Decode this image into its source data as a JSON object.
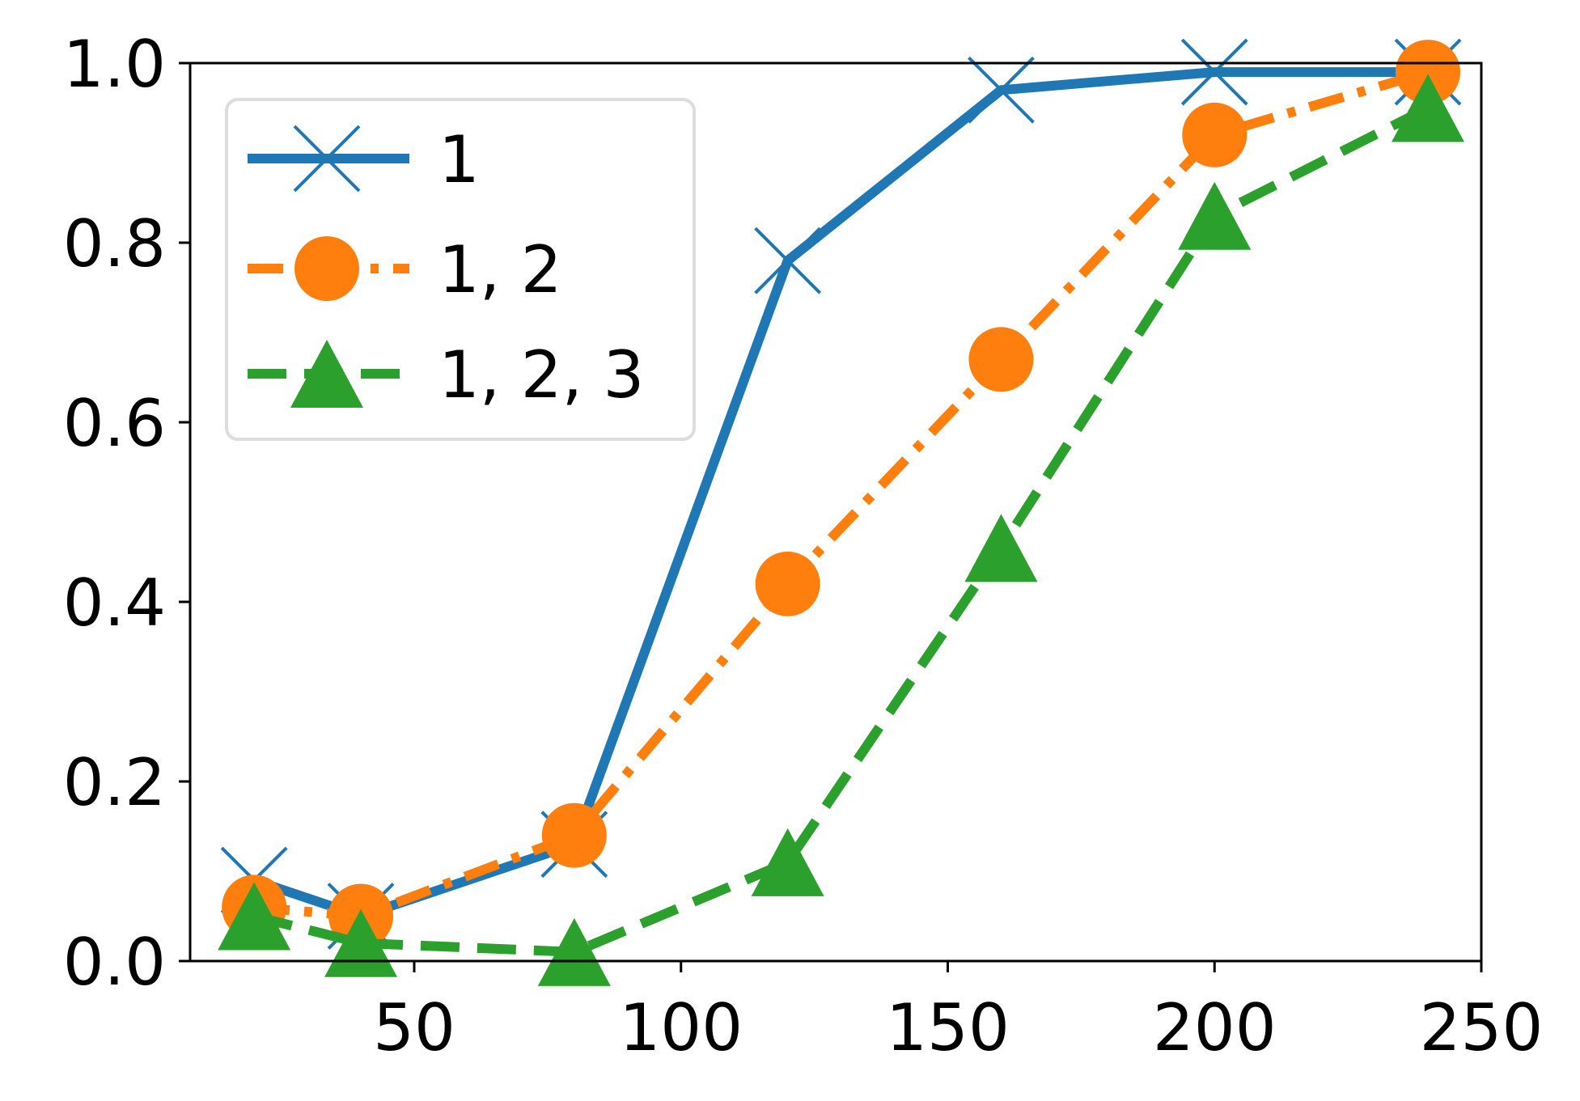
{
  "chart_data": {
    "type": "line",
    "title": "",
    "xlabel": "",
    "ylabel": "",
    "xlim": [
      8,
      250
    ],
    "ylim": [
      0.0,
      1.0
    ],
    "x_ticks": [
      50,
      100,
      150,
      200,
      250
    ],
    "x_tick_labels": [
      "50",
      "100",
      "150",
      "200",
      "250"
    ],
    "y_ticks": [
      0.0,
      0.2,
      0.4,
      0.6,
      0.8,
      1.0
    ],
    "y_tick_labels": [
      "0.0",
      "0.2",
      "0.4",
      "0.6",
      "0.8",
      "1.0"
    ],
    "grid": false,
    "legend_position": "top-left",
    "series": [
      {
        "name": "1",
        "color": "#1f77b4",
        "line_style": "solid",
        "marker": "x",
        "x": [
          20,
          40,
          80,
          120,
          160,
          200,
          240
        ],
        "y": [
          0.09,
          0.05,
          0.13,
          0.78,
          0.97,
          0.99,
          0.99
        ]
      },
      {
        "name": "1, 2",
        "color": "#ff7f0e",
        "line_style": "dashdot",
        "marker": "circle",
        "x": [
          20,
          40,
          80,
          120,
          160,
          200,
          240
        ],
        "y": [
          0.06,
          0.05,
          0.14,
          0.42,
          0.67,
          0.92,
          0.99
        ]
      },
      {
        "name": "1, 2, 3",
        "color": "#2ca02c",
        "line_style": "dashed",
        "marker": "triangle",
        "x": [
          20,
          40,
          80,
          120,
          160,
          200,
          240
        ],
        "y": [
          0.05,
          0.02,
          0.01,
          0.11,
          0.46,
          0.83,
          0.95
        ]
      }
    ]
  }
}
